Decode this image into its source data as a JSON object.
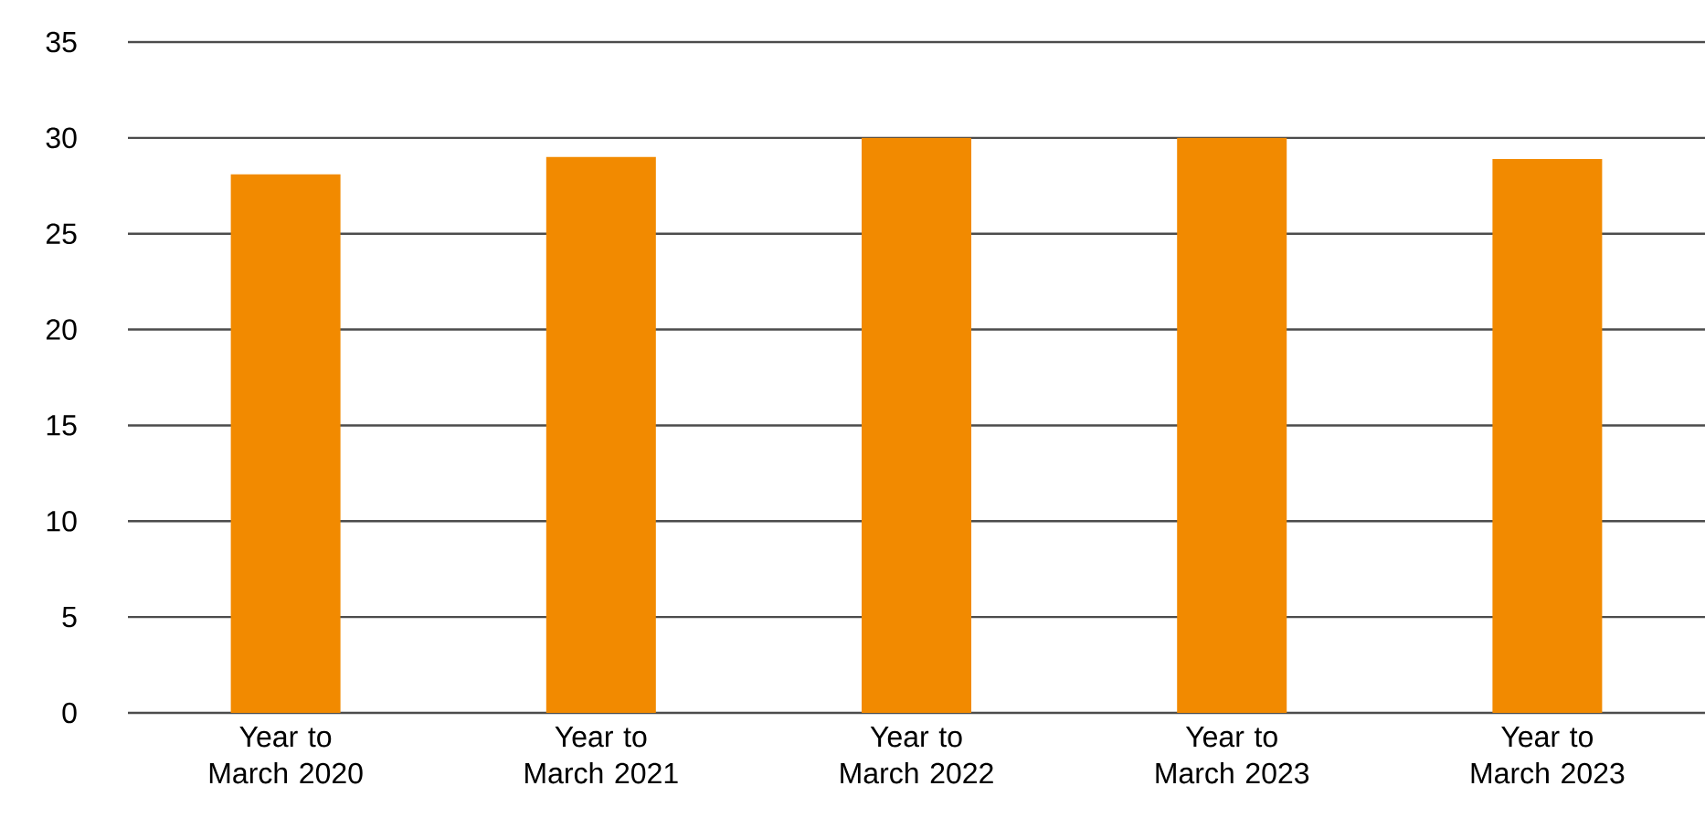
{
  "chart_data": {
    "type": "bar",
    "categories": [
      "Year to March 2020",
      "Year to March 2021",
      "Year to March 2022",
      "Year to March 2023",
      "Year to March 2023"
    ],
    "values": [
      28.1,
      29.0,
      30.0,
      30.0,
      28.9
    ],
    "color": "#f28a00",
    "ylim": [
      0,
      35
    ],
    "yticks": [
      0,
      5,
      10,
      15,
      20,
      25,
      30,
      35
    ],
    "grid": "y"
  }
}
